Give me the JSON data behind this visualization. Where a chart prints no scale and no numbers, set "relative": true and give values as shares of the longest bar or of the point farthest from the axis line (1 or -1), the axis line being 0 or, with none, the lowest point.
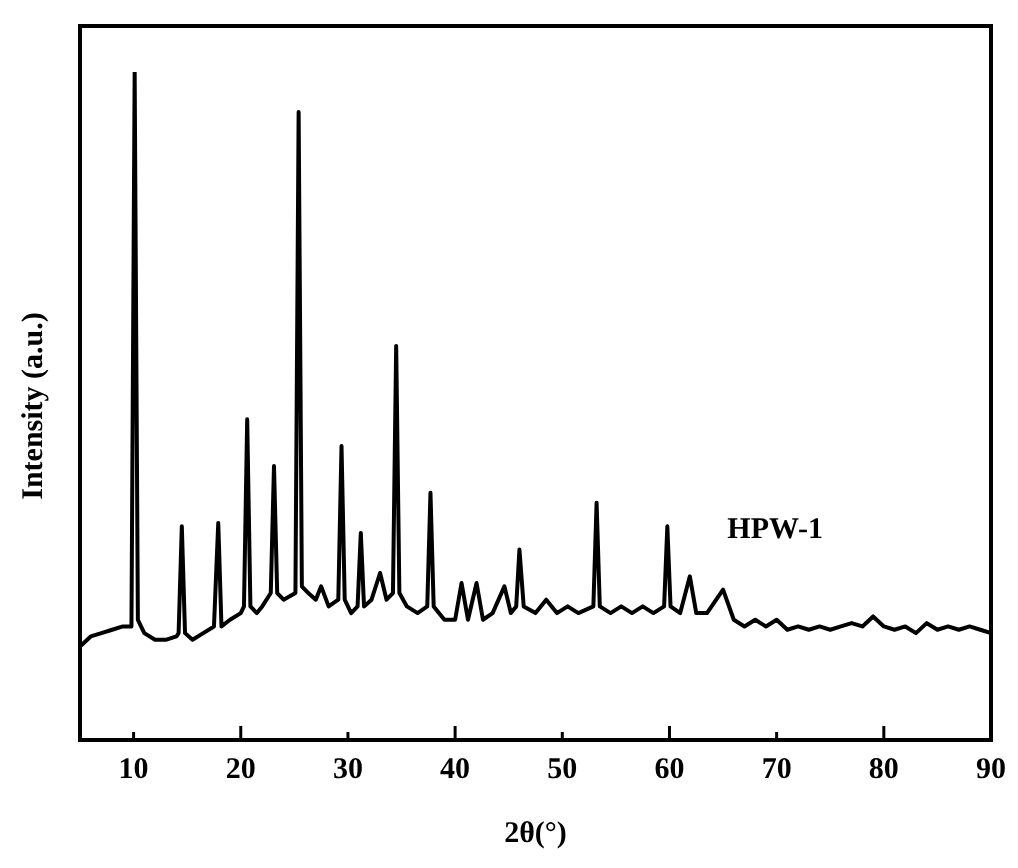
{
  "chart_data": {
    "type": "line",
    "xlabel": "2θ(°)",
    "ylabel": "Intensity (a.u.)",
    "relative": true,
    "xlim": [
      5,
      90
    ],
    "xticks": [
      10,
      20,
      30,
      40,
      50,
      60,
      70,
      80,
      90
    ],
    "grid": false,
    "legend": false,
    "marker": "none",
    "line_style": "solid",
    "x": [
      5,
      6,
      7,
      8,
      9,
      9.8,
      10.1,
      10.4,
      11,
      12,
      13,
      14,
      14.2,
      14.5,
      14.8,
      15.5,
      16.5,
      17.5,
      17.9,
      18.2,
      19,
      20,
      20.3,
      20.6,
      20.9,
      21.5,
      22,
      22.8,
      23.1,
      23.4,
      24,
      25.1,
      25.4,
      25.7,
      26.3,
      27,
      27.5,
      28.2,
      29.1,
      29.4,
      29.7,
      30.3,
      30.9,
      31.2,
      31.5,
      32.2,
      33,
      33.6,
      34.2,
      34.5,
      34.8,
      35.5,
      36.5,
      37.4,
      37.7,
      38,
      39,
      40,
      40.6,
      41.2,
      42,
      42.6,
      43.5,
      44.6,
      45.2,
      45.7,
      46,
      46.4,
      47.5,
      48.5,
      49.5,
      50.5,
      51.5,
      52.9,
      53.2,
      53.5,
      54.5,
      55.5,
      56.5,
      57.5,
      58.5,
      59.5,
      59.8,
      60.1,
      61,
      61.9,
      62.5,
      63.5,
      65,
      66,
      67,
      68,
      69,
      70,
      71,
      72,
      73,
      74,
      75,
      76,
      77,
      78,
      79,
      80,
      81,
      82,
      83,
      84,
      85,
      86,
      87,
      88,
      89,
      90
    ],
    "series": [
      {
        "name": "HPW-1",
        "color": "#000000",
        "values": [
          0.14,
          0.155,
          0.16,
          0.165,
          0.17,
          0.17,
          1.0,
          0.18,
          0.16,
          0.15,
          0.15,
          0.155,
          0.16,
          0.32,
          0.16,
          0.15,
          0.16,
          0.17,
          0.325,
          0.17,
          0.18,
          0.19,
          0.2,
          0.48,
          0.2,
          0.19,
          0.2,
          0.22,
          0.41,
          0.22,
          0.21,
          0.22,
          0.94,
          0.23,
          0.22,
          0.21,
          0.23,
          0.2,
          0.21,
          0.44,
          0.21,
          0.19,
          0.2,
          0.31,
          0.2,
          0.21,
          0.25,
          0.21,
          0.22,
          0.59,
          0.22,
          0.2,
          0.19,
          0.2,
          0.37,
          0.2,
          0.18,
          0.18,
          0.235,
          0.18,
          0.235,
          0.18,
          0.19,
          0.23,
          0.19,
          0.2,
          0.285,
          0.2,
          0.19,
          0.21,
          0.19,
          0.2,
          0.19,
          0.2,
          0.355,
          0.2,
          0.19,
          0.2,
          0.19,
          0.2,
          0.19,
          0.2,
          0.32,
          0.2,
          0.19,
          0.245,
          0.19,
          0.19,
          0.225,
          0.18,
          0.17,
          0.18,
          0.17,
          0.18,
          0.165,
          0.17,
          0.165,
          0.17,
          0.165,
          0.17,
          0.175,
          0.17,
          0.185,
          0.17,
          0.165,
          0.17,
          0.16,
          0.175,
          0.165,
          0.17,
          0.165,
          0.17,
          0.165,
          0.16
        ]
      }
    ]
  }
}
